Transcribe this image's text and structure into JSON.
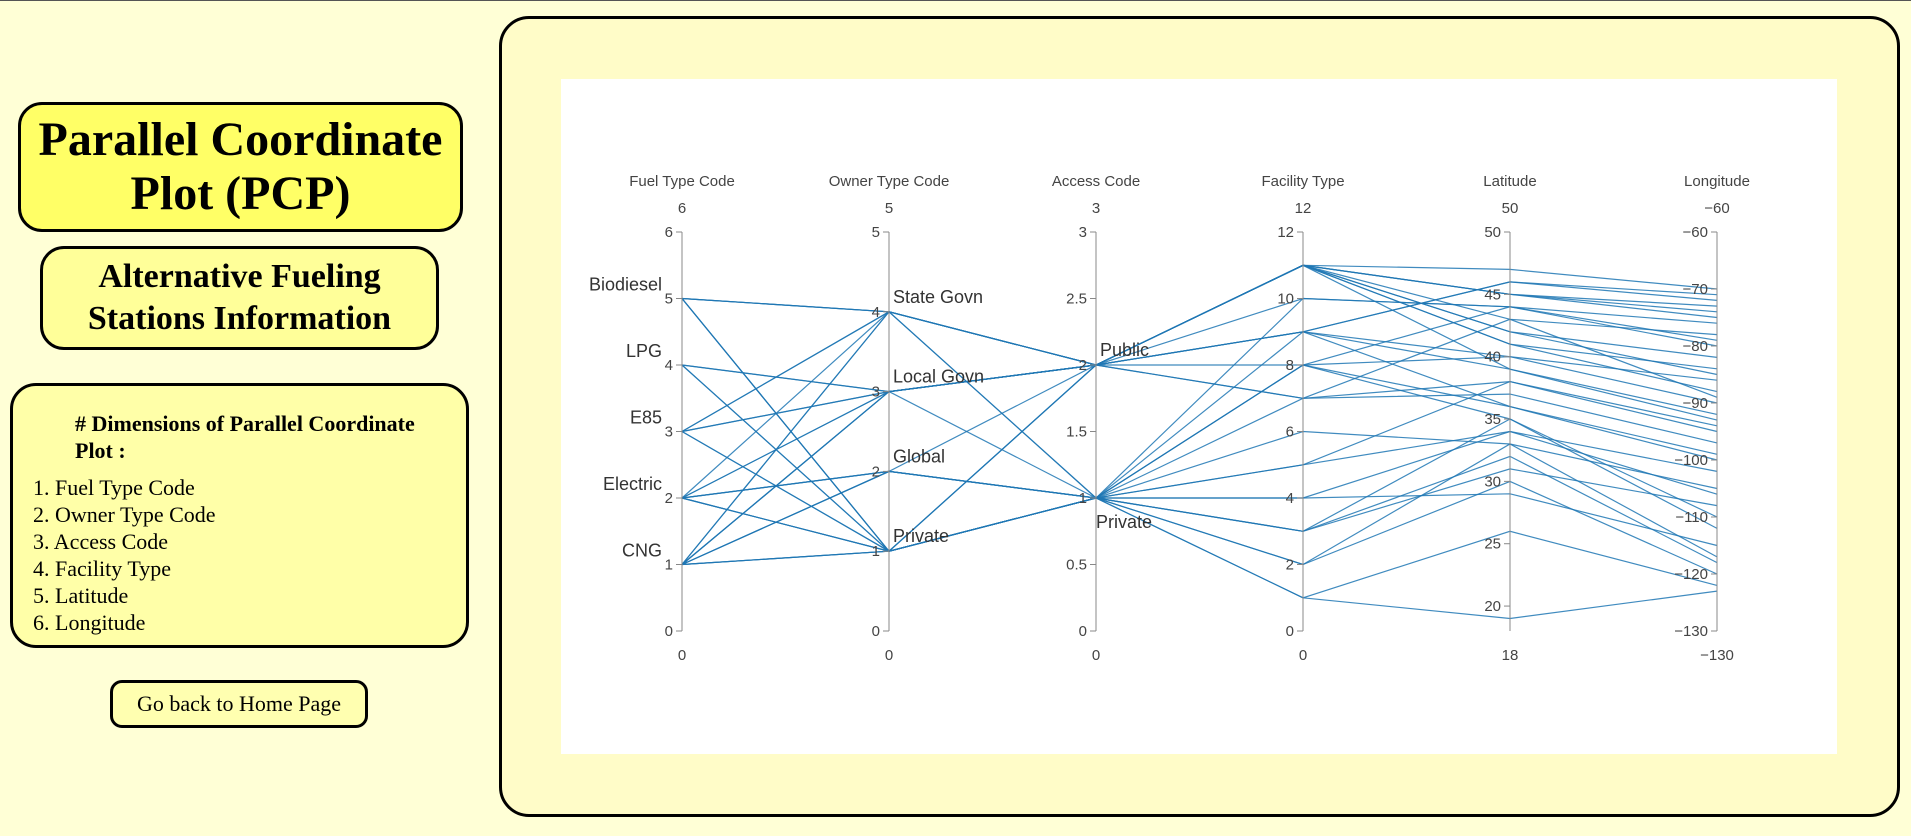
{
  "sidebar": {
    "title": "Parallel Coordinate Plot (PCP)",
    "subtitle": "Alternative Fueling Stations Information",
    "dimensions_heading": "# Dimensions of Parallel Coordinate Plot :",
    "dimensions": [
      "1. Fuel Type Code",
      "2. Owner Type Code",
      "3. Access Code",
      "4. Facility Type",
      "5. Latitude",
      "6. Longitude"
    ],
    "home_button": "Go back to Home Page"
  },
  "colors": {
    "background": "#ffffd6",
    "title_box": "#ffff66",
    "line": "#1f77b4",
    "axis": "#888888"
  },
  "chart_data": {
    "type": "parallel-coordinates",
    "dimensions": [
      {
        "label": "Fuel Type Code",
        "range": [
          0,
          6
        ],
        "top": "6",
        "bottom": "0",
        "ticks": [
          0,
          1,
          2,
          3,
          4,
          5,
          6
        ],
        "categories": [
          {
            "value": 5,
            "label": "Biodiesel"
          },
          {
            "value": 4,
            "label": "LPG"
          },
          {
            "value": 3,
            "label": "E85"
          },
          {
            "value": 2,
            "label": "Electric"
          },
          {
            "value": 1,
            "label": "CNG"
          }
        ]
      },
      {
        "label": "Owner Type Code",
        "range": [
          0,
          5
        ],
        "top": "5",
        "bottom": "0",
        "ticks": [
          0,
          1,
          2,
          3,
          4,
          5
        ],
        "categories": [
          {
            "value": 4,
            "label": "State Govn"
          },
          {
            "value": 3,
            "label": "Local Govn"
          },
          {
            "value": 2,
            "label": "Global"
          },
          {
            "value": 1,
            "label": "Private"
          }
        ]
      },
      {
        "label": "Access Code",
        "range": [
          0,
          3
        ],
        "top": "3",
        "bottom": "0",
        "ticks": [
          0,
          0.5,
          1,
          1.5,
          2,
          2.5,
          3
        ],
        "categories": [
          {
            "value": 2,
            "label": "Public"
          },
          {
            "value": 1,
            "label": "Private"
          }
        ]
      },
      {
        "label": "Facility Type",
        "range": [
          0,
          12
        ],
        "top": "12",
        "bottom": "0",
        "ticks": [
          0,
          2,
          4,
          6,
          8,
          10,
          12
        ],
        "categories": []
      },
      {
        "label": "Latitude",
        "range": [
          18,
          50
        ],
        "top": "50",
        "bottom": "18",
        "ticks": [
          20,
          25,
          30,
          35,
          40,
          45,
          50
        ],
        "categories": []
      },
      {
        "label": "Longitude",
        "range": [
          -130,
          -60
        ],
        "top": "−60",
        "bottom": "−130",
        "ticks": [
          -130,
          -120,
          -110,
          -100,
          -90,
          -80,
          -70,
          -60
        ],
        "tick_labels": [
          "−130",
          "−120",
          "−110",
          "−100",
          "−90",
          "−80",
          "−70",
          "−60"
        ],
        "categories": []
      }
    ],
    "rows": [
      [
        5,
        4,
        2,
        11,
        45,
        -75
      ],
      [
        5,
        4,
        1,
        10,
        44,
        -80
      ],
      [
        5,
        1,
        1,
        8,
        40,
        -90
      ],
      [
        5,
        1,
        2,
        7,
        38,
        -95
      ],
      [
        4,
        3,
        2,
        11,
        42,
        -85
      ],
      [
        4,
        1,
        1,
        9,
        36,
        -100
      ],
      [
        3,
        4,
        2,
        9,
        46,
        -72
      ],
      [
        3,
        1,
        1,
        6,
        33,
        -105
      ],
      [
        3,
        3,
        2,
        11,
        41,
        -88
      ],
      [
        2,
        3,
        2,
        11,
        43,
        -78
      ],
      [
        2,
        2,
        1,
        8,
        35,
        -112
      ],
      [
        2,
        1,
        1,
        3,
        32,
        -118
      ],
      [
        2,
        1,
        2,
        9,
        39,
        -92
      ],
      [
        1,
        4,
        2,
        11,
        47,
        -70
      ],
      [
        1,
        3,
        2,
        7,
        37,
        -97
      ],
      [
        1,
        2,
        1,
        5,
        34,
        -102
      ],
      [
        1,
        1,
        1,
        2,
        30,
        -120
      ],
      [
        1,
        1,
        1,
        1,
        19,
        -123
      ],
      [
        1,
        3,
        2,
        10,
        44,
        -76
      ],
      [
        2,
        2,
        2,
        9,
        40,
        -86
      ],
      [
        3,
        4,
        1,
        4,
        29,
        -115
      ],
      [
        5,
        1,
        1,
        1,
        26,
        -122
      ],
      [
        4,
        3,
        2,
        11,
        45,
        -73
      ],
      [
        1,
        2,
        1,
        3,
        31,
        -108
      ],
      [
        2,
        4,
        2,
        11,
        42,
        -82
      ],
      [
        3,
        1,
        2,
        8,
        36,
        -99
      ],
      [
        1,
        1,
        1,
        5,
        38,
        -94
      ],
      [
        4,
        1,
        1,
        2,
        33,
        -117
      ],
      [
        2,
        3,
        2,
        9,
        46,
        -71
      ],
      [
        5,
        4,
        2,
        11,
        41,
        -84
      ],
      [
        1,
        3,
        1,
        3,
        35,
        -110
      ],
      [
        2,
        1,
        1,
        7,
        43,
        -89
      ],
      [
        3,
        3,
        2,
        11,
        39,
        -93
      ],
      [
        1,
        2,
        1,
        8,
        44,
        -79
      ],
      [
        2,
        2,
        1,
        4,
        34,
        -106
      ],
      [
        1,
        4,
        2,
        11,
        45,
        -74
      ]
    ]
  }
}
